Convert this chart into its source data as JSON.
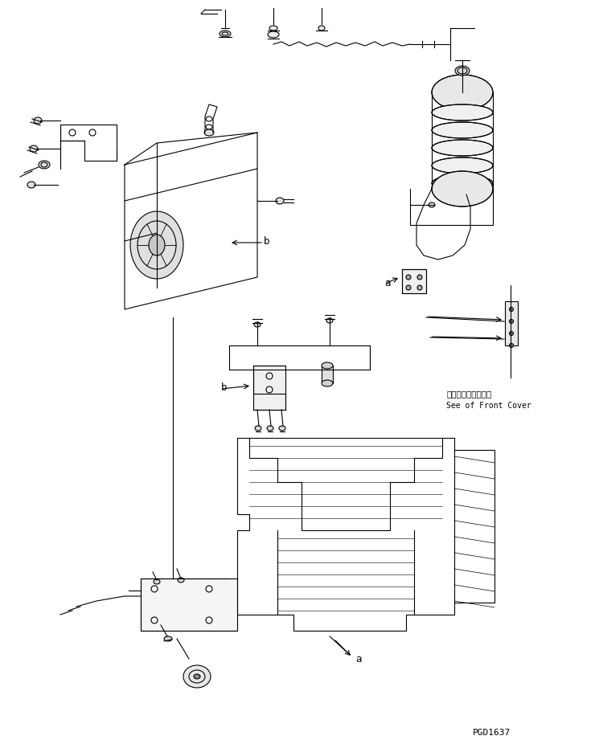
{
  "bg_color": "#ffffff",
  "line_color": "#000000",
  "text_color": "#000000",
  "fig_width": 7.4,
  "fig_height": 9.31,
  "dpi": 100,
  "note_jp": "フロントカバー参照",
  "note_en": "See of Front Cover",
  "part_id": "PGD1637"
}
